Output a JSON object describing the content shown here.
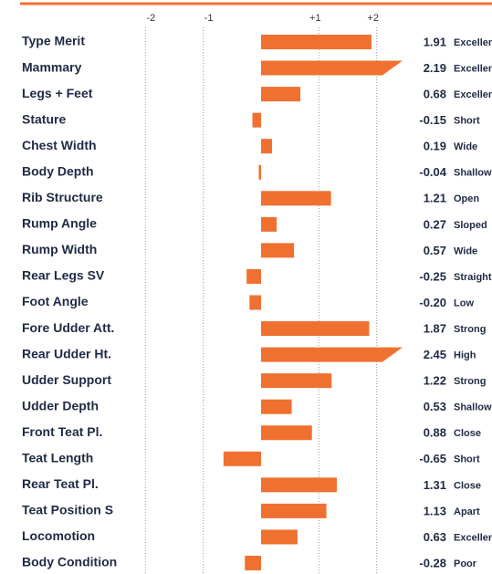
{
  "chart_data": {
    "type": "bar",
    "orientation": "horizontal",
    "color": "#f07030",
    "categories": [
      "Type Merit",
      "Mammary",
      "Legs + Feet",
      "Stature",
      "Chest Width",
      "Body Depth",
      "Rib Structure",
      "Rump Angle",
      "Rump Width",
      "Rear Legs SV",
      "Foot Angle",
      "Fore Udder Att.",
      "Rear Udder Ht.",
      "Udder Support",
      "Udder Depth",
      "Front Teat Pl.",
      "Teat Length",
      "Rear Teat Pl.",
      "Teat Position S",
      "Locomotion",
      "Body Condition"
    ],
    "values": [
      1.91,
      2.19,
      0.68,
      -0.15,
      0.19,
      -0.04,
      1.21,
      0.27,
      0.57,
      -0.25,
      -0.2,
      1.87,
      2.45,
      1.22,
      0.53,
      0.88,
      -0.65,
      1.31,
      1.13,
      0.63,
      -0.28
    ],
    "value_labels": [
      "1.91",
      "2.19",
      "0.68",
      "-0.15",
      "0.19",
      "-0.04",
      "1.21",
      "0.27",
      "0.57",
      "-0.25",
      "-0.20",
      "1.87",
      "2.45",
      "1.22",
      "0.53",
      "0.88",
      "-0.65",
      "1.31",
      "1.13",
      "0.63",
      "-0.28"
    ],
    "descriptors": [
      "Excellent",
      "Excellent",
      "Excellent",
      "Short",
      "Wide",
      "Shallow",
      "Open",
      "Sloped",
      "Wide",
      "Straight",
      "Low",
      "Strong",
      "High",
      "Strong",
      "Shallow",
      "Close",
      "Short",
      "Close",
      "Apart",
      "Excellent",
      "Poor"
    ],
    "xlim": [
      -2.1,
      2.1
    ],
    "xticks": [
      -2,
      -1,
      {
        "value": 1,
        "label": "+1"
      },
      {
        "value": 2,
        "label": "+2"
      }
    ],
    "grid": true
  }
}
